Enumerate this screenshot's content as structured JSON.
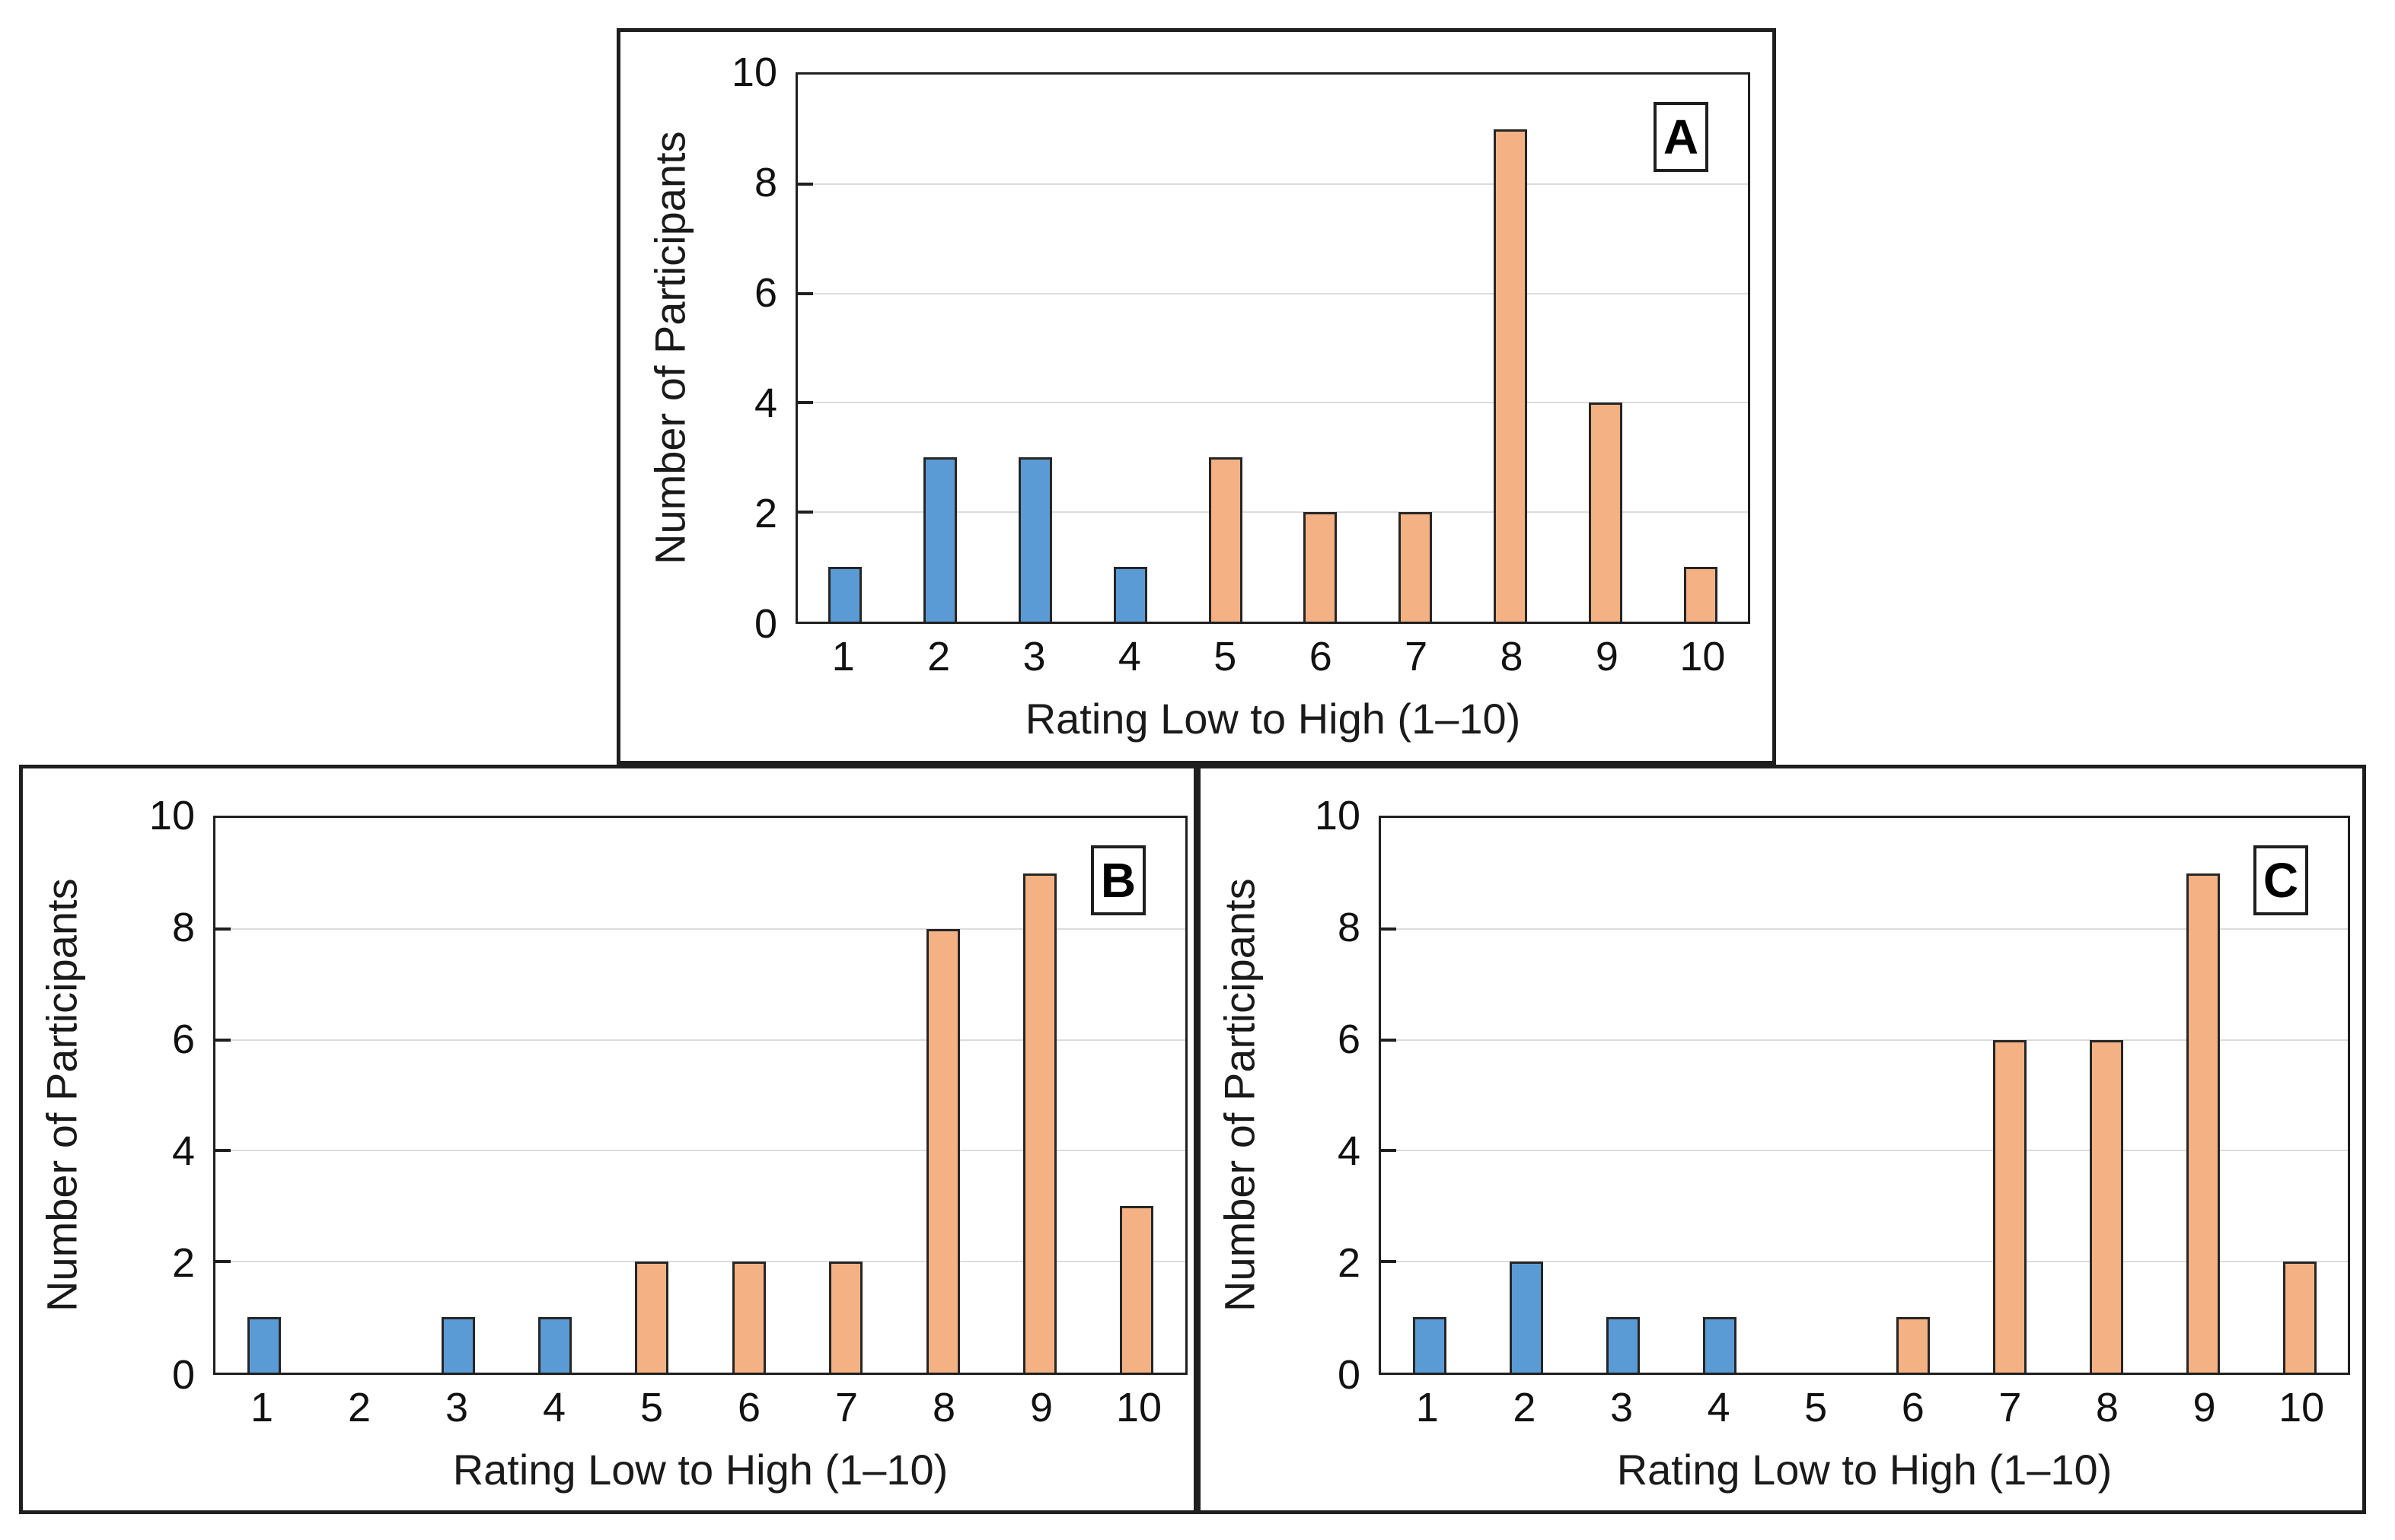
{
  "figure": {
    "background": "#ffffff",
    "panel_border_color": "#1f1f1f"
  },
  "palette": {
    "low_rating": "#5B9BD5",
    "high_rating": "#F4B183",
    "bar_border": "#262626",
    "gridline": "#dcdcdc",
    "axis": "#1f1f1f"
  },
  "chart_data": [
    {
      "panel_label": "A",
      "type": "bar",
      "categories": [
        "1",
        "2",
        "3",
        "4",
        "5",
        "6",
        "7",
        "8",
        "9",
        "10"
      ],
      "values": [
        1,
        3,
        3,
        1,
        3,
        2,
        2,
        9,
        4,
        1
      ],
      "bar_colors": [
        "low",
        "low",
        "low",
        "low",
        "high",
        "high",
        "high",
        "high",
        "high",
        "high"
      ],
      "xlabel": "Rating Low to High (1–10)",
      "ylabel": "Number of Participants",
      "ylim": [
        0,
        10
      ],
      "yticks": [
        0,
        2,
        4,
        6,
        8,
        10
      ],
      "gridlines_at": [
        2,
        4,
        6,
        8
      ],
      "grid": "horizontal",
      "legend": "none"
    },
    {
      "panel_label": "B",
      "type": "bar",
      "categories": [
        "1",
        "2",
        "3",
        "4",
        "5",
        "6",
        "7",
        "8",
        "9",
        "10"
      ],
      "values": [
        1,
        0,
        1,
        1,
        2,
        2,
        2,
        8,
        9,
        3
      ],
      "bar_colors": [
        "low",
        "low",
        "low",
        "low",
        "high",
        "high",
        "high",
        "high",
        "high",
        "high"
      ],
      "xlabel": "Rating Low to High (1–10)",
      "ylabel": "Number of Participants",
      "ylim": [
        0,
        10
      ],
      "yticks": [
        0,
        2,
        4,
        6,
        8,
        10
      ],
      "gridlines_at": [
        2,
        4,
        6,
        8
      ],
      "grid": "horizontal",
      "legend": "none"
    },
    {
      "panel_label": "C",
      "type": "bar",
      "categories": [
        "1",
        "2",
        "3",
        "4",
        "5",
        "6",
        "7",
        "8",
        "9",
        "10"
      ],
      "values": [
        1,
        2,
        1,
        1,
        0,
        1,
        6,
        6,
        9,
        2
      ],
      "bar_colors": [
        "low",
        "low",
        "low",
        "low",
        "high",
        "high",
        "high",
        "high",
        "high",
        "high"
      ],
      "xlabel": "Rating Low to High (1–10)",
      "ylabel": "Number of Participants",
      "ylim": [
        0,
        10
      ],
      "yticks": [
        0,
        2,
        4,
        6,
        8,
        10
      ],
      "gridlines_at": [
        2,
        4,
        6,
        8
      ],
      "grid": "horizontal",
      "legend": "none"
    }
  ]
}
